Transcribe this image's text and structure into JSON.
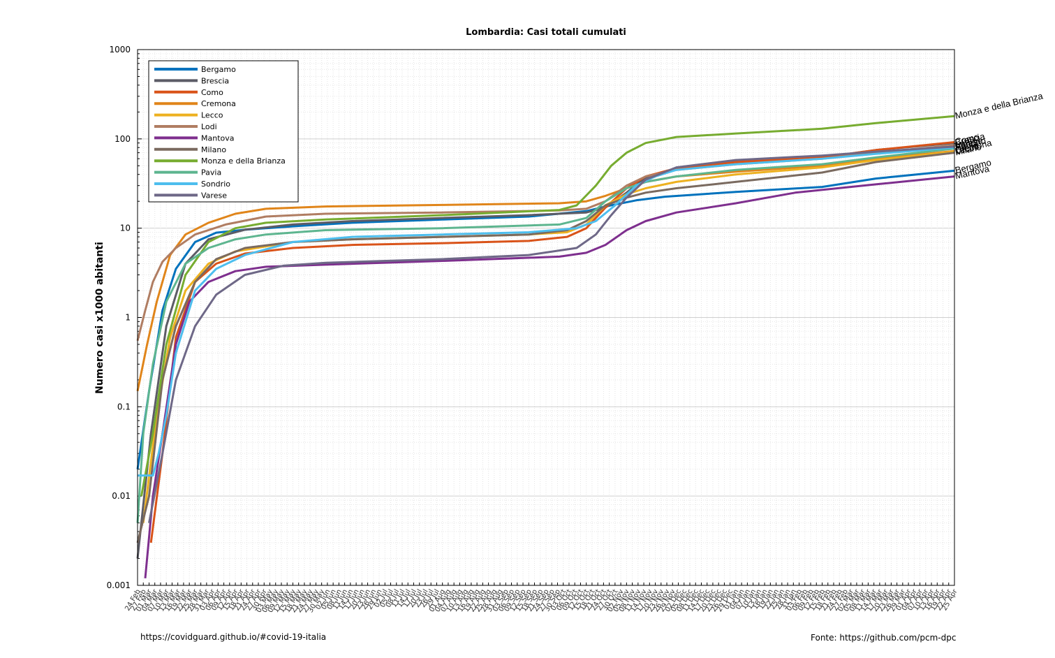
{
  "chart_data": {
    "type": "line",
    "title": "Lombardia: Casi totali cumulati",
    "xlabel": "",
    "ylabel": "Numero casi x1000 abitanti",
    "yscale": "log",
    "ylim": [
      0.001,
      1000
    ],
    "yticks": [
      "0.001",
      "0.01",
      "0.1",
      "1",
      "10",
      "100",
      "1000"
    ],
    "x_range": [
      "2020-02-24",
      "2021-04-25"
    ],
    "xtick_interval_days": 3,
    "grid": true,
    "legend_position": "top-left",
    "series": [
      {
        "name": "Bergamo",
        "color": "#0072bd",
        "end_label": "Bergamo",
        "points": [
          [
            "2020-02-24",
            0.02
          ],
          [
            "2020-03-01",
            0.15
          ],
          [
            "2020-03-08",
            1.2
          ],
          [
            "2020-03-15",
            3.5
          ],
          [
            "2020-03-25",
            7.0
          ],
          [
            "2020-04-05",
            8.9
          ],
          [
            "2020-04-20",
            9.6
          ],
          [
            "2020-05-15",
            10.5
          ],
          [
            "2020-06-15",
            11.5
          ],
          [
            "2020-08-01",
            12.5
          ],
          [
            "2020-09-15",
            13.5
          ],
          [
            "2020-10-15",
            15.5
          ],
          [
            "2020-10-25",
            17.5
          ],
          [
            "2020-11-10",
            20.5
          ],
          [
            "2020-11-25",
            22.5
          ],
          [
            "2021-01-01",
            25.5
          ],
          [
            "2021-02-15",
            29.0
          ],
          [
            "2021-03-15",
            36.0
          ],
          [
            "2021-04-25",
            44.0
          ]
        ]
      },
      {
        "name": "Brescia",
        "color": "#5c5c66",
        "end_label": "Brescia",
        "points": [
          [
            "2020-02-24",
            0.002
          ],
          [
            "2020-03-02",
            0.05
          ],
          [
            "2020-03-10",
            0.8
          ],
          [
            "2020-03-20",
            4.0
          ],
          [
            "2020-04-01",
            7.5
          ],
          [
            "2020-04-20",
            9.6
          ],
          [
            "2020-05-15",
            11.0
          ],
          [
            "2020-06-15",
            12.0
          ],
          [
            "2020-08-01",
            13.0
          ],
          [
            "2020-09-15",
            14.0
          ],
          [
            "2020-10-15",
            15.0
          ],
          [
            "2020-10-25",
            17.0
          ],
          [
            "2020-11-05",
            25.0
          ],
          [
            "2020-11-15",
            37.0
          ],
          [
            "2020-12-01",
            47.0
          ],
          [
            "2021-01-01",
            55.0
          ],
          [
            "2021-02-15",
            62.0
          ],
          [
            "2021-03-15",
            75.0
          ],
          [
            "2021-04-25",
            90.0
          ]
        ]
      },
      {
        "name": "Como",
        "color": "#d95319",
        "end_label": "Como",
        "points": [
          [
            "2020-03-02",
            0.003
          ],
          [
            "2020-03-08",
            0.03
          ],
          [
            "2020-03-15",
            0.6
          ],
          [
            "2020-03-25",
            2.5
          ],
          [
            "2020-04-05",
            4.0
          ],
          [
            "2020-04-20",
            5.2
          ],
          [
            "2020-05-15",
            6.0
          ],
          [
            "2020-06-15",
            6.5
          ],
          [
            "2020-08-01",
            6.8
          ],
          [
            "2020-09-15",
            7.2
          ],
          [
            "2020-10-05",
            8.0
          ],
          [
            "2020-10-15",
            10.0
          ],
          [
            "2020-10-25",
            17.0
          ],
          [
            "2020-11-05",
            28.0
          ],
          [
            "2020-11-15",
            38.0
          ],
          [
            "2020-12-01",
            47.0
          ],
          [
            "2021-01-01",
            55.0
          ],
          [
            "2021-02-15",
            62.0
          ],
          [
            "2021-03-15",
            75.0
          ],
          [
            "2021-04-25",
            92.0
          ]
        ]
      },
      {
        "name": "Cremona",
        "color": "#e0851a",
        "end_label": "Cremona",
        "points": [
          [
            "2020-02-24",
            0.15
          ],
          [
            "2020-02-29",
            0.5
          ],
          [
            "2020-03-05",
            1.5
          ],
          [
            "2020-03-12",
            5.0
          ],
          [
            "2020-03-20",
            8.5
          ],
          [
            "2020-04-01",
            11.5
          ],
          [
            "2020-04-15",
            14.5
          ],
          [
            "2020-05-01",
            16.5
          ],
          [
            "2020-06-01",
            17.5
          ],
          [
            "2020-08-01",
            18.2
          ],
          [
            "2020-10-01",
            19.0
          ],
          [
            "2020-10-15",
            20.0
          ],
          [
            "2020-10-25",
            23.0
          ],
          [
            "2020-11-05",
            28.0
          ],
          [
            "2020-11-15",
            33.0
          ],
          [
            "2020-12-01",
            38.0
          ],
          [
            "2021-01-01",
            43.0
          ],
          [
            "2021-02-15",
            50.0
          ],
          [
            "2021-03-15",
            60.0
          ],
          [
            "2021-04-25",
            73.0
          ]
        ]
      },
      {
        "name": "Lecco",
        "color": "#edb120",
        "end_label": "Lecco",
        "points": [
          [
            "2020-02-27",
            0.005
          ],
          [
            "2020-03-05",
            0.08
          ],
          [
            "2020-03-12",
            0.6
          ],
          [
            "2020-03-20",
            2.0
          ],
          [
            "2020-04-01",
            4.0
          ],
          [
            "2020-04-15",
            5.5
          ],
          [
            "2020-05-15",
            7.0
          ],
          [
            "2020-06-15",
            7.5
          ],
          [
            "2020-08-01",
            8.0
          ],
          [
            "2020-09-15",
            8.5
          ],
          [
            "2020-10-05",
            9.0
          ],
          [
            "2020-10-15",
            11.0
          ],
          [
            "2020-10-25",
            18.0
          ],
          [
            "2020-11-05",
            24.0
          ],
          [
            "2020-11-15",
            28.0
          ],
          [
            "2020-12-01",
            33.0
          ],
          [
            "2021-01-01",
            40.0
          ],
          [
            "2021-02-15",
            48.0
          ],
          [
            "2021-03-15",
            58.0
          ],
          [
            "2021-04-25",
            72.0
          ]
        ]
      },
      {
        "name": "Lodi",
        "color": "#b07d62",
        "end_label": "Lodi",
        "points": [
          [
            "2020-02-24",
            0.55
          ],
          [
            "2020-02-28",
            1.2
          ],
          [
            "2020-03-03",
            2.5
          ],
          [
            "2020-03-08",
            4.2
          ],
          [
            "2020-03-15",
            6.0
          ],
          [
            "2020-03-25",
            8.5
          ],
          [
            "2020-04-10",
            11.0
          ],
          [
            "2020-05-01",
            13.5
          ],
          [
            "2020-06-01",
            14.5
          ],
          [
            "2020-08-01",
            15.0
          ],
          [
            "2020-10-01",
            15.8
          ],
          [
            "2020-10-15",
            16.5
          ],
          [
            "2020-10-25",
            20.0
          ],
          [
            "2020-11-05",
            30.0
          ],
          [
            "2020-11-15",
            38.0
          ],
          [
            "2020-12-01",
            45.0
          ],
          [
            "2021-01-01",
            52.0
          ],
          [
            "2021-02-15",
            60.0
          ],
          [
            "2021-03-15",
            70.0
          ],
          [
            "2021-04-25",
            85.0
          ]
        ]
      },
      {
        "name": "Mantova",
        "color": "#7e2f8e",
        "end_label": "Mantova",
        "points": [
          [
            "2020-02-28",
            0.0012
          ],
          [
            "2020-03-03",
            0.01
          ],
          [
            "2020-03-08",
            0.05
          ],
          [
            "2020-03-15",
            0.5
          ],
          [
            "2020-03-22",
            1.5
          ],
          [
            "2020-04-01",
            2.5
          ],
          [
            "2020-04-15",
            3.3
          ],
          [
            "2020-05-01",
            3.7
          ],
          [
            "2020-06-01",
            3.9
          ],
          [
            "2020-08-01",
            4.3
          ],
          [
            "2020-10-01",
            4.8
          ],
          [
            "2020-10-15",
            5.3
          ],
          [
            "2020-10-25",
            6.5
          ],
          [
            "2020-11-05",
            9.5
          ],
          [
            "2020-11-15",
            12.0
          ],
          [
            "2020-12-01",
            15.0
          ],
          [
            "2021-01-01",
            19.0
          ],
          [
            "2021-02-01",
            25.0
          ],
          [
            "2021-03-15",
            31.0
          ],
          [
            "2021-04-25",
            38.0
          ]
        ]
      },
      {
        "name": "Milano",
        "color": "#7a6a5f",
        "end_label": "Milano",
        "points": [
          [
            "2020-02-24",
            0.003
          ],
          [
            "2020-03-01",
            0.01
          ],
          [
            "2020-03-08",
            0.2
          ],
          [
            "2020-03-15",
            0.8
          ],
          [
            "2020-03-25",
            2.5
          ],
          [
            "2020-04-05",
            4.5
          ],
          [
            "2020-04-20",
            6.0
          ],
          [
            "2020-05-15",
            7.0
          ],
          [
            "2020-06-15",
            7.5
          ],
          [
            "2020-08-01",
            8.0
          ],
          [
            "2020-09-15",
            8.5
          ],
          [
            "2020-10-05",
            9.5
          ],
          [
            "2020-10-15",
            12.0
          ],
          [
            "2020-10-25",
            18.0
          ],
          [
            "2020-11-05",
            22.0
          ],
          [
            "2020-11-15",
            25.0
          ],
          [
            "2020-12-01",
            28.0
          ],
          [
            "2021-01-01",
            33.0
          ],
          [
            "2021-02-15",
            42.0
          ],
          [
            "2021-03-15",
            55.0
          ],
          [
            "2021-04-25",
            70.0
          ]
        ]
      },
      {
        "name": "Monza e della Brianza",
        "color": "#77ac30",
        "end_label": "Monza e della Brianza",
        "points": [
          [
            "2020-02-26",
            0.01
          ],
          [
            "2020-03-03",
            0.05
          ],
          [
            "2020-03-10",
            0.5
          ],
          [
            "2020-03-20",
            3.0
          ],
          [
            "2020-04-01",
            7.0
          ],
          [
            "2020-04-15",
            10.0
          ],
          [
            "2020-05-01",
            11.5
          ],
          [
            "2020-06-01",
            12.5
          ],
          [
            "2020-08-01",
            14.0
          ],
          [
            "2020-10-01",
            16.0
          ],
          [
            "2020-10-10",
            18.0
          ],
          [
            "2020-10-20",
            30.0
          ],
          [
            "2020-10-28",
            50.0
          ],
          [
            "2020-11-05",
            70.0
          ],
          [
            "2020-11-15",
            90.0
          ],
          [
            "2020-12-01",
            105.0
          ],
          [
            "2021-01-01",
            115.0
          ],
          [
            "2021-02-15",
            130.0
          ],
          [
            "2021-03-15",
            150.0
          ],
          [
            "2021-04-25",
            180.0
          ]
        ]
      },
      {
        "name": "Pavia",
        "color": "#5db58f",
        "end_label": "Pavia",
        "points": [
          [
            "2020-02-24",
            0.005
          ],
          [
            "2020-02-27",
            0.05
          ],
          [
            "2020-03-03",
            0.3
          ],
          [
            "2020-03-10",
            1.5
          ],
          [
            "2020-03-20",
            4.0
          ],
          [
            "2020-04-01",
            6.0
          ],
          [
            "2020-04-15",
            7.5
          ],
          [
            "2020-05-01",
            8.5
          ],
          [
            "2020-06-01",
            9.5
          ],
          [
            "2020-08-01",
            10.0
          ],
          [
            "2020-10-01",
            11.0
          ],
          [
            "2020-10-15",
            13.0
          ],
          [
            "2020-10-25",
            20.0
          ],
          [
            "2020-11-05",
            28.0
          ],
          [
            "2020-11-15",
            33.0
          ],
          [
            "2020-12-01",
            38.0
          ],
          [
            "2021-01-01",
            45.0
          ],
          [
            "2021-02-15",
            52.0
          ],
          [
            "2021-03-15",
            62.0
          ],
          [
            "2021-04-25",
            78.0
          ]
        ]
      },
      {
        "name": "Sondrio",
        "color": "#4dbeee",
        "end_label": "Sondrio",
        "points": [
          [
            "2020-02-24",
            0.017
          ],
          [
            "2020-03-03",
            0.017
          ],
          [
            "2020-03-06",
            0.03
          ],
          [
            "2020-03-10",
            0.08
          ],
          [
            "2020-03-15",
            0.4
          ],
          [
            "2020-03-25",
            2.0
          ],
          [
            "2020-04-05",
            3.5
          ],
          [
            "2020-04-20",
            5.0
          ],
          [
            "2020-05-15",
            7.0
          ],
          [
            "2020-06-15",
            8.0
          ],
          [
            "2020-08-01",
            8.5
          ],
          [
            "2020-09-15",
            9.0
          ],
          [
            "2020-10-10",
            10.0
          ],
          [
            "2020-10-20",
            12.0
          ],
          [
            "2020-10-30",
            18.0
          ],
          [
            "2020-11-10",
            30.0
          ],
          [
            "2020-11-20",
            38.0
          ],
          [
            "2020-12-01",
            45.0
          ],
          [
            "2021-01-01",
            52.0
          ],
          [
            "2021-02-15",
            60.0
          ],
          [
            "2021-03-15",
            68.0
          ],
          [
            "2021-04-25",
            80.0
          ]
        ]
      },
      {
        "name": "Varese",
        "color": "#6e6887",
        "end_label": "Varese",
        "points": [
          [
            "2020-03-01",
            0.005
          ],
          [
            "2020-03-08",
            0.03
          ],
          [
            "2020-03-15",
            0.2
          ],
          [
            "2020-03-25",
            0.8
          ],
          [
            "2020-04-05",
            1.8
          ],
          [
            "2020-04-20",
            3.0
          ],
          [
            "2020-05-10",
            3.8
          ],
          [
            "2020-06-01",
            4.1
          ],
          [
            "2020-08-01",
            4.5
          ],
          [
            "2020-09-15",
            5.0
          ],
          [
            "2020-10-10",
            6.0
          ],
          [
            "2020-10-20",
            8.5
          ],
          [
            "2020-10-28",
            14.0
          ],
          [
            "2020-11-05",
            22.0
          ],
          [
            "2020-11-15",
            35.0
          ],
          [
            "2020-12-01",
            48.0
          ],
          [
            "2021-01-01",
            58.0
          ],
          [
            "2021-02-15",
            65.0
          ],
          [
            "2021-03-15",
            72.0
          ],
          [
            "2021-04-25",
            82.0
          ]
        ]
      }
    ]
  },
  "footer": {
    "left": "https://covidguard.github.io/#covid-19-italia",
    "right": "Fonte: https://github.com/pcm-dpc"
  }
}
